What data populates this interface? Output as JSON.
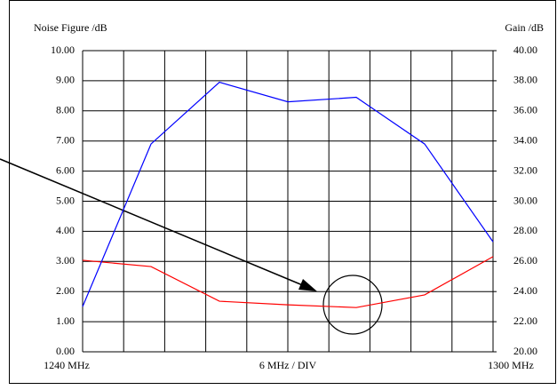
{
  "chart_data": {
    "type": "line",
    "ylabel": "Noise Figure /dB",
    "y2label": "Gain /dB",
    "xlabel": "6 MHz / DIV",
    "x": [
      1240,
      1250,
      1260,
      1270,
      1280,
      1290,
      1300
    ],
    "series": [
      {
        "name": "Noise Figure",
        "color": "#ff0000",
        "values": [
          3.04,
          2.83,
          1.68,
          1.56,
          1.47,
          1.89,
          3.16
        ]
      },
      {
        "name": "Gain",
        "color": "#0000ff",
        "axis": "y2",
        "values": [
          23.0,
          33.8,
          37.9,
          36.6,
          36.9,
          33.8,
          27.3
        ]
      }
    ],
    "xlim": [
      1240,
      1300
    ],
    "xticks": [
      {
        "value": 1240,
        "label": "1240 MHz"
      },
      1246,
      1252,
      1258,
      1264,
      1270,
      1276,
      1282,
      1288,
      1294,
      {
        "value": 1300,
        "label": "1300 MHz"
      }
    ],
    "ylim": [
      0,
      10
    ],
    "yticks": [
      {
        "value": 0,
        "label": "0.00"
      },
      {
        "value": 1,
        "label": "1.00"
      },
      {
        "value": 2,
        "label": "2.00"
      },
      {
        "value": 3,
        "label": "3.00"
      },
      {
        "value": 4,
        "label": "4.00"
      },
      {
        "value": 5,
        "label": "5.00"
      },
      {
        "value": 6,
        "label": "6.00"
      },
      {
        "value": 7,
        "label": "7.00"
      },
      {
        "value": 8,
        "label": "8.00"
      },
      {
        "value": 9,
        "label": "9.00"
      },
      {
        "value": 10,
        "label": "10.00"
      }
    ],
    "y2lim": [
      20,
      40
    ],
    "y2ticks": [
      {
        "value": 20,
        "label": "20.00"
      },
      {
        "value": 22,
        "label": "22.00"
      },
      {
        "value": 24,
        "label": "24.00"
      },
      {
        "value": 26,
        "label": "26.00"
      },
      {
        "value": 28,
        "label": "28.00"
      },
      {
        "value": 30,
        "label": "30.00"
      },
      {
        "value": 32,
        "label": "32.00"
      },
      {
        "value": 34,
        "label": "34.00"
      },
      {
        "value": 36,
        "label": "36.00"
      },
      {
        "value": 38,
        "label": "38.00"
      },
      {
        "value": 40,
        "label": "40.00"
      }
    ],
    "ylabel_color": "#ff0000",
    "y2label_color": "#0000ff",
    "grid": true
  }
}
